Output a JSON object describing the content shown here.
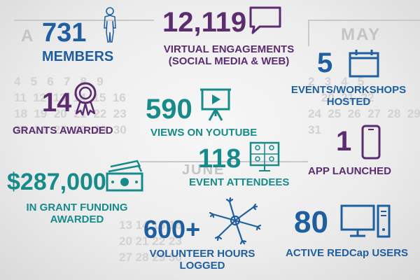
{
  "background": {
    "month_left": "A",
    "month_right": "MAY",
    "month_bottom": "JUNE"
  },
  "stats": {
    "members": {
      "value": "731",
      "label": "MEMBERS",
      "icon": "person-icon"
    },
    "virtual": {
      "value": "12,119",
      "label_1": "VIRTUAL ENGAGEMENTS",
      "label_2": "(SOCIAL MEDIA & WEB)",
      "icon": "speech-bubble-icon"
    },
    "events": {
      "value": "5",
      "label_1": "EVENTS/WORKSHOPS",
      "label_2": "HOSTED",
      "icon": "calendar-icon"
    },
    "grants": {
      "value": "14",
      "label": "GRANTS AWARDED",
      "icon": "award-ribbon-icon"
    },
    "youtube": {
      "value": "590",
      "label": "VIEWS ON YOUTUBE",
      "icon": "presentation-screen-icon"
    },
    "app": {
      "value": "1",
      "label": "APP LAUNCHED",
      "icon": "smartphone-icon"
    },
    "attendees": {
      "value": "118",
      "label": "EVENT ATTENDEES",
      "icon": "video-conference-icon"
    },
    "funding": {
      "value": "$287,000",
      "label_1": "IN GRANT FUNDING",
      "label_2": "AWARDED",
      "icon": "money-icon"
    },
    "volunteer": {
      "value": "600+",
      "label_1": "VOLUNTEER HOURS",
      "label_2": "LOGGED",
      "icon": "joined-hands-icon"
    },
    "redcap": {
      "value": "80",
      "label": "ACTIVE REDCap USERS",
      "icon": "computer-icon"
    }
  },
  "colors": {
    "blue": "#1f5fa0",
    "purple": "#5b2c6f",
    "teal": "#178a8a"
  }
}
